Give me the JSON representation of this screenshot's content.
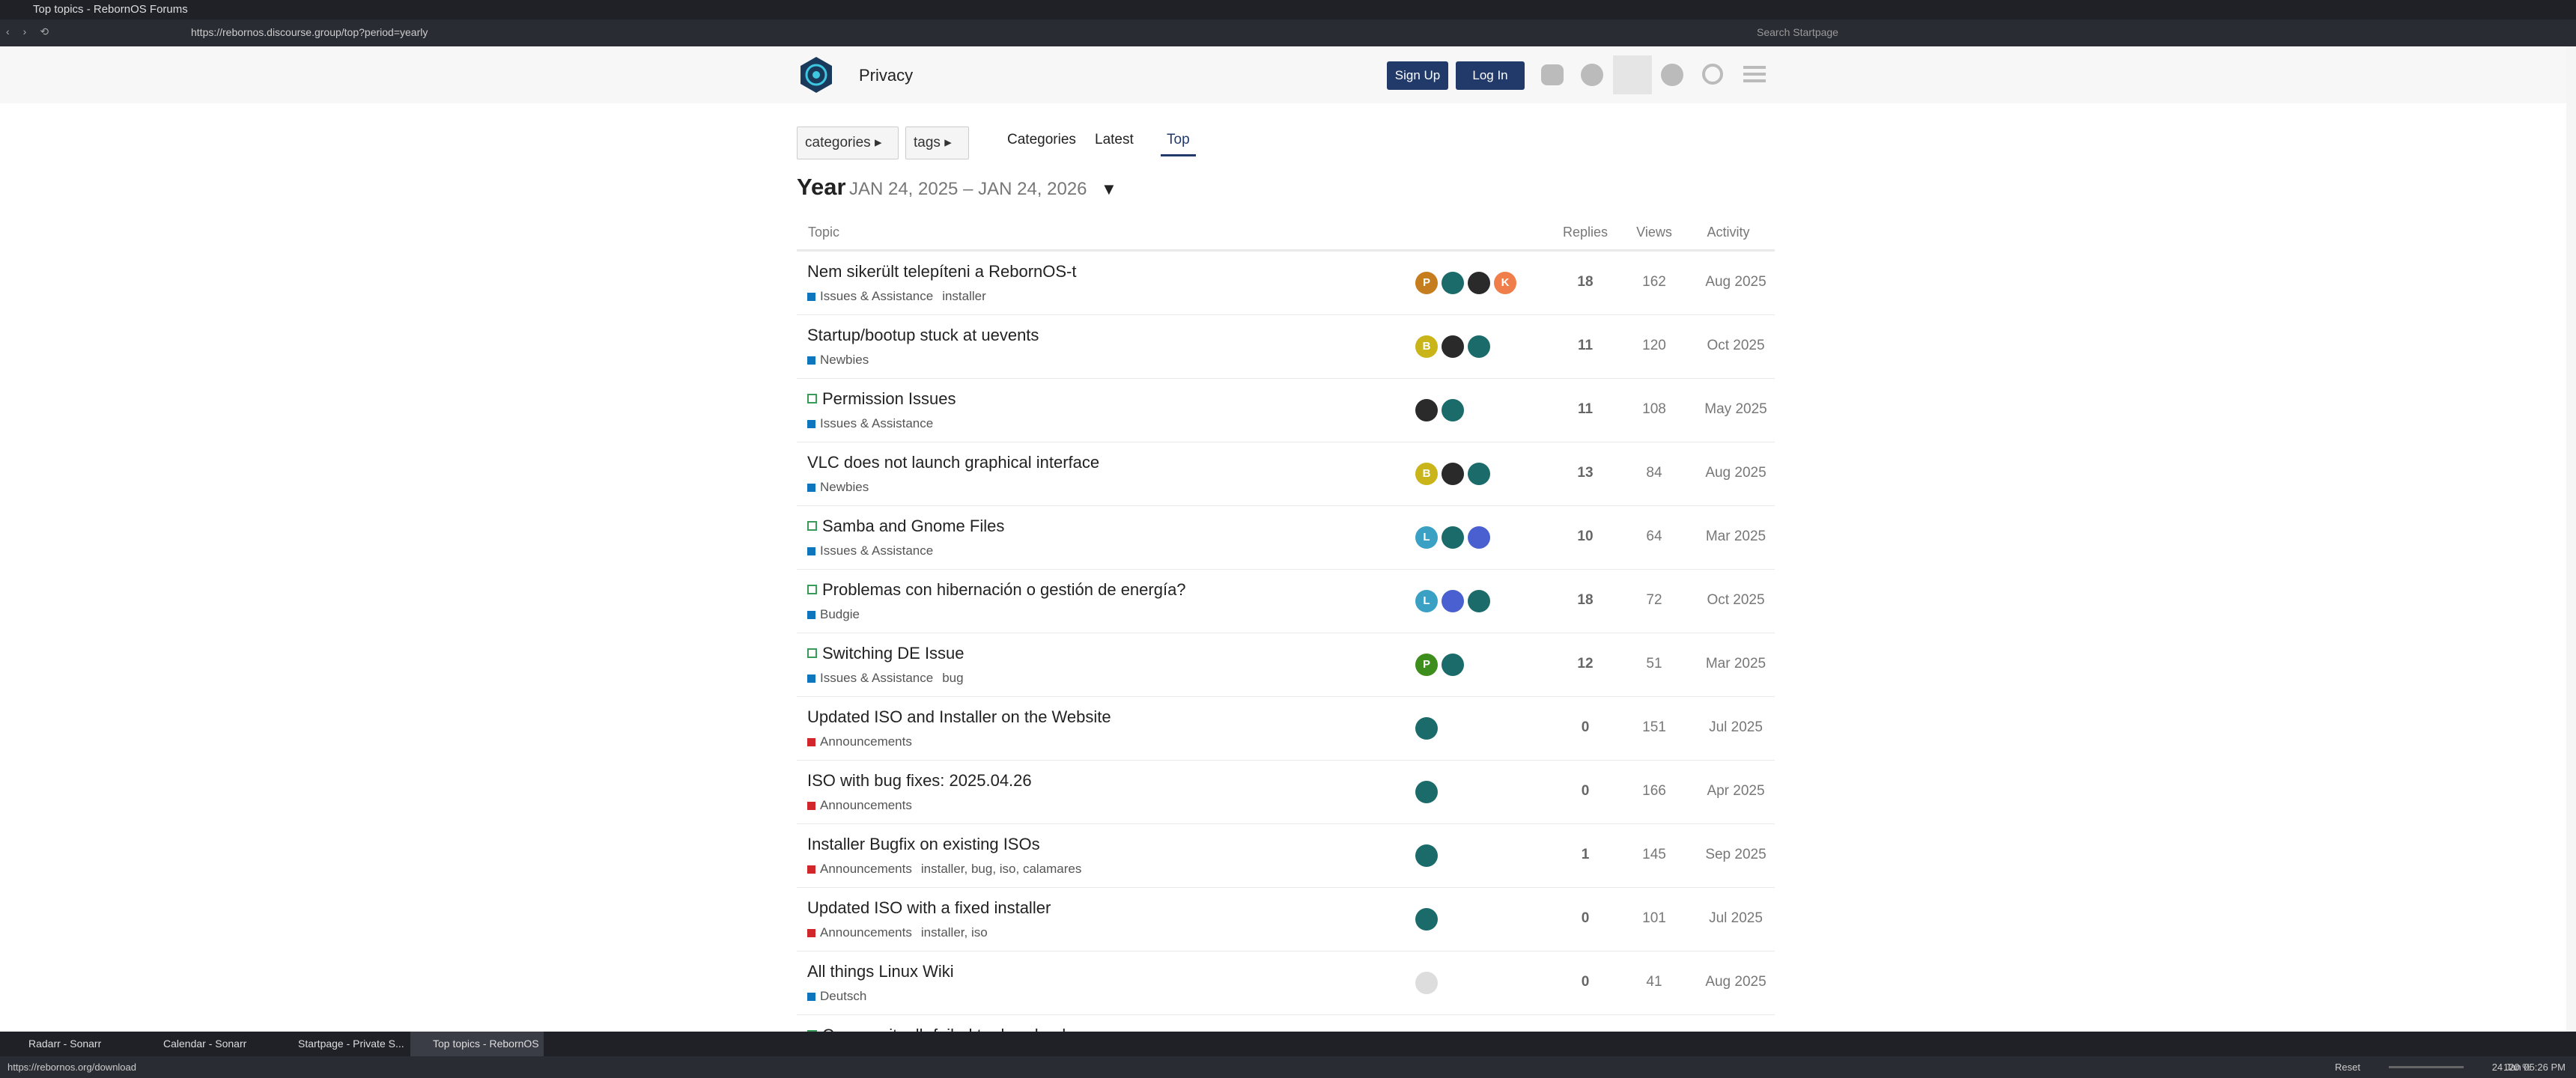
{
  "browser": {
    "window_title": "Top topics - RebornOS Forums",
    "url": "https://rebornos.discourse.group/top?period=yearly",
    "search_placeholder": "Search Startpage",
    "tabs": [
      "Radarr - Sonarr",
      "Calendar - Sonarr",
      "Startpage - Private S...",
      "Top topics - RebornOS"
    ],
    "status_url": "https://rebornos.org/download",
    "reset": "Reset",
    "zoom": "120 %",
    "clock": "24 Jan 05:26 PM"
  },
  "header": {
    "title": "Privacy",
    "sign_up": "Sign Up",
    "log_in": "Log In"
  },
  "nav": {
    "categories_dropdown": "categories",
    "tags_dropdown": "tags",
    "links": [
      "Categories",
      "Latest",
      "Top"
    ],
    "active": 2
  },
  "period": {
    "label": "Year",
    "range": "JAN 24, 2025 – JAN 24, 2026"
  },
  "table": {
    "columns": [
      "Topic",
      "Replies",
      "Views",
      "Activity"
    ],
    "rows": [
      {
        "title": "Nem sikerült telepíteni a RebornOS-t",
        "solved": false,
        "category": "Issues & Assistance",
        "category_color": "#0e76bd",
        "tags": "installer",
        "avatars": [
          {
            "letter": "P",
            "color": "#c67d1e"
          },
          {
            "color": "#1b6b6b"
          },
          {
            "color": "#2a2a2a"
          },
          {
            "letter": "K",
            "color": "#ef7e4a"
          }
        ],
        "replies": 18,
        "views": 162,
        "activity": "Aug 2025"
      },
      {
        "title": "Startup/bootup stuck at uevents",
        "solved": false,
        "category": "Newbies",
        "category_color": "#0e76bd",
        "avatars": [
          {
            "letter": "B",
            "color": "#c9b51a"
          },
          {
            "color": "#2a2a2a"
          },
          {
            "color": "#1b6b6b"
          }
        ],
        "replies": 11,
        "views": 120,
        "activity": "Oct 2025"
      },
      {
        "title": "Permission Issues",
        "solved": true,
        "category": "Issues & Assistance",
        "category_color": "#0e76bd",
        "avatars": [
          {
            "color": "#2a2a2a"
          },
          {
            "color": "#1b6b6b"
          }
        ],
        "replies": 11,
        "views": 108,
        "activity": "May 2025"
      },
      {
        "title": "VLC does not launch graphical interface",
        "solved": false,
        "category": "Newbies",
        "category_color": "#0e76bd",
        "avatars": [
          {
            "letter": "B",
            "color": "#c9b51a"
          },
          {
            "color": "#2a2a2a"
          },
          {
            "color": "#1b6b6b"
          }
        ],
        "replies": 13,
        "views": 84,
        "activity": "Aug 2025"
      },
      {
        "title": "Samba and Gnome Files",
        "solved": true,
        "category": "Issues & Assistance",
        "category_color": "#0e76bd",
        "avatars": [
          {
            "letter": "L",
            "color": "#3aa0c4"
          },
          {
            "color": "#1b6b6b"
          },
          {
            "color": "#4a5fd0"
          }
        ],
        "replies": 10,
        "views": 64,
        "activity": "Mar 2025"
      },
      {
        "title": "Problemas con hibernación o gestión de energía?",
        "solved": true,
        "category": "Budgie",
        "category_color": "#0e76bd",
        "avatars": [
          {
            "letter": "L",
            "color": "#3aa0c4"
          },
          {
            "color": "#4a5fd0"
          },
          {
            "color": "#1b6b6b"
          }
        ],
        "replies": 18,
        "views": 72,
        "activity": "Oct 2025"
      },
      {
        "title": "Switching DE Issue",
        "solved": true,
        "category": "Issues & Assistance",
        "category_color": "#0e76bd",
        "tags": "bug",
        "avatars": [
          {
            "letter": "P",
            "color": "#3e8e1e"
          },
          {
            "color": "#1b6b6b"
          }
        ],
        "replies": 12,
        "views": 51,
        "activity": "Mar 2025"
      },
      {
        "title": "Updated ISO and Installer on the Website",
        "solved": false,
        "category": "Announcements",
        "category_color": "#d1262a",
        "avatars": [
          {
            "color": "#1b6b6b"
          }
        ],
        "replies": 0,
        "views": 151,
        "activity": "Jul 2025"
      },
      {
        "title": "ISO with bug fixes: 2025.04.26",
        "solved": false,
        "category": "Announcements",
        "category_color": "#d1262a",
        "avatars": [
          {
            "color": "#1b6b6b"
          }
        ],
        "replies": 0,
        "views": 166,
        "activity": "Apr 2025"
      },
      {
        "title": "Installer Bugfix on existing ISOs",
        "solved": false,
        "category": "Announcements",
        "category_color": "#d1262a",
        "tags": "installer, bug, iso, calamares",
        "avatars": [
          {
            "color": "#1b6b6b"
          }
        ],
        "replies": 1,
        "views": 145,
        "activity": "Sep 2025"
      },
      {
        "title": "Updated ISO with a fixed installer",
        "solved": false,
        "category": "Announcements",
        "category_color": "#d1262a",
        "tags": "installer, iso",
        "avatars": [
          {
            "color": "#1b6b6b"
          }
        ],
        "replies": 0,
        "views": 101,
        "activity": "Jul 2025"
      },
      {
        "title": "All things Linux Wiki",
        "solved": false,
        "category": "Deutsch",
        "category_color": "#0e76bd",
        "avatars": [
          {
            "color": "#dddddd"
          }
        ],
        "replies": 0,
        "views": 41,
        "activity": "Aug 2025"
      },
      {
        "title": "Community db failed to download",
        "solved": true
      }
    ]
  }
}
